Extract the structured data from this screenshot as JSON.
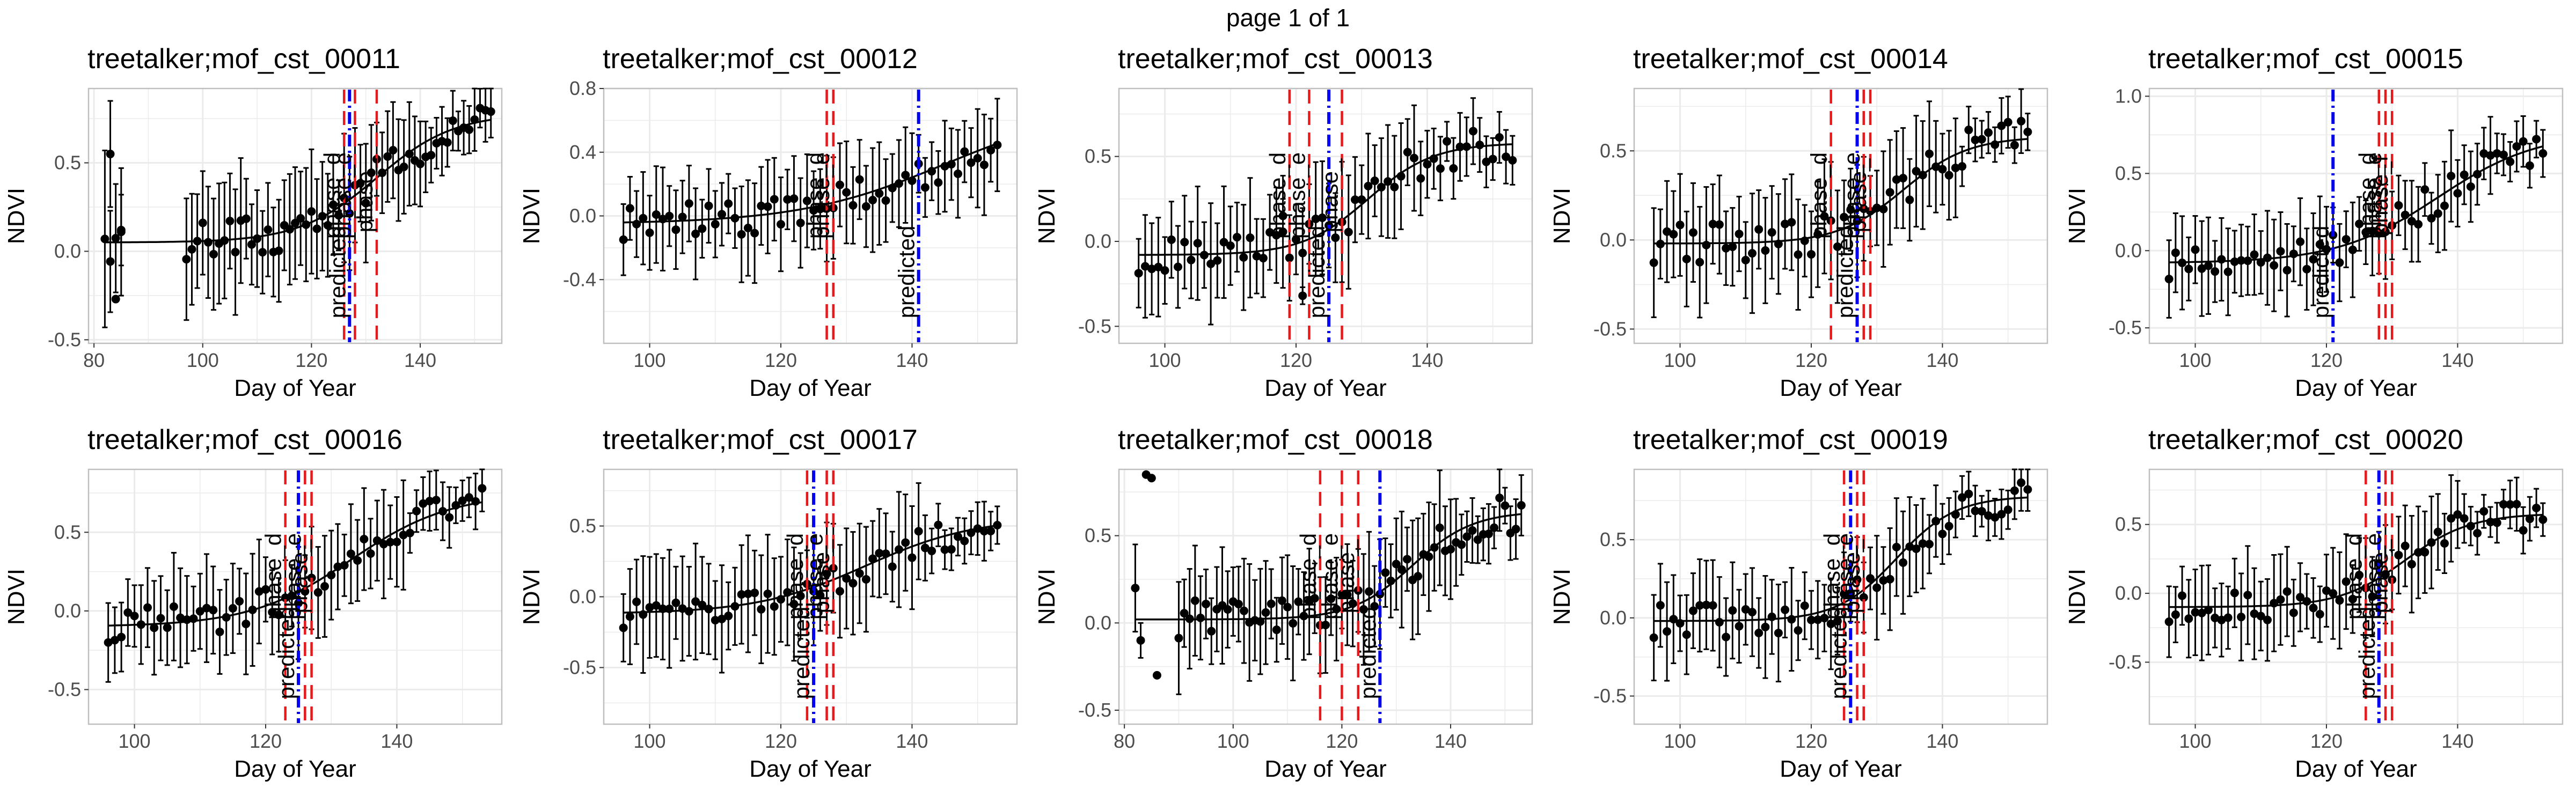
{
  "page_title": "page 1 of 1",
  "style": {
    "point_color": "#000000",
    "curve_color": "#000000",
    "phase_line_color": "#e41a1c",
    "predicted_line_color": "#0000ee",
    "panel_border": "#bfbfbf",
    "grid_color": "#ebebeb",
    "tick_text_color": "#4d4d4d"
  },
  "chart_data": [
    {
      "type": "scatter",
      "title": "treetalker;mof_cst_00011",
      "xlabel": "Day of Year",
      "ylabel": "NDVI",
      "xlim": [
        79,
        155
      ],
      "ylim": [
        -0.52,
        0.92
      ],
      "xticks": [
        80,
        100,
        120,
        140
      ],
      "yticks": [
        -0.5,
        0.0,
        0.5
      ],
      "ytick_labels": [
        "-0.5",
        "0.0",
        "0.5"
      ],
      "series_start": 83,
      "series_end": 153,
      "fit": {
        "base": 0.05,
        "amp": 0.73,
        "mid": 132,
        "k": 0.14
      },
      "err_half": 0.35,
      "outliers": [
        [
          82,
          0.07,
          0.5
        ],
        [
          83,
          0.55,
          0.3
        ],
        [
          84,
          -0.27,
          0.0
        ],
        [
          85,
          0.12,
          0.2
        ]
      ],
      "gap": [
        86,
        96
      ],
      "vlines": [
        {
          "x": 126,
          "label": "phase_d",
          "kind": "phase"
        },
        {
          "x": 127,
          "label": "predicted",
          "kind": "predicted"
        },
        {
          "x": 128,
          "label": "phase_e",
          "kind": "phase"
        },
        {
          "x": 132,
          "label": "phase_",
          "kind": "phase"
        }
      ],
      "grid": true
    },
    {
      "type": "scatter",
      "title": "treetalker;mof_cst_00012",
      "xlabel": "Day of Year",
      "ylabel": "NDVI",
      "xlim": [
        93,
        156
      ],
      "ylim": [
        -0.8,
        0.8
      ],
      "xticks": [
        100,
        120,
        140
      ],
      "yticks": [
        -0.4,
        0.0,
        0.4,
        0.8
      ],
      "ytick_labels": [
        "-0.4",
        "0.0",
        "0.4",
        "0.8"
      ],
      "series_start": 96,
      "series_end": 153,
      "fit": {
        "base": -0.05,
        "amp": 0.75,
        "mid": 145,
        "k": 0.09
      },
      "err_half": 0.32,
      "outliers": [],
      "gap": null,
      "vlines": [
        {
          "x": 127,
          "label": "phase_d",
          "kind": "phase"
        },
        {
          "x": 128,
          "label": "phase_e",
          "kind": "phase"
        },
        {
          "x": 141,
          "label": "predicted",
          "kind": "predicted"
        }
      ],
      "grid": true
    },
    {
      "type": "scatter",
      "title": "treetalker;mof_cst_00013",
      "xlabel": "Day of Year",
      "ylabel": "NDVI",
      "xlim": [
        93,
        156
      ],
      "ylim": [
        -0.6,
        0.9
      ],
      "xticks": [
        100,
        120,
        140
      ],
      "yticks": [
        -0.5,
        0.0,
        0.5
      ],
      "ytick_labels": [
        "-0.5",
        "0.0",
        "0.5"
      ],
      "series_start": 96,
      "series_end": 153,
      "fit": {
        "base": -0.08,
        "amp": 0.66,
        "mid": 131,
        "k": 0.2
      },
      "err_half": 0.35,
      "outliers": [
        [
          118,
          0.15,
          0.1
        ],
        [
          121,
          -0.32,
          0.05
        ]
      ],
      "gap": null,
      "vlines": [
        {
          "x": 119,
          "label": "phase_d",
          "kind": "phase"
        },
        {
          "x": 122,
          "label": "phase_e",
          "kind": "phase"
        },
        {
          "x": 125,
          "label": "predicted",
          "kind": "predicted"
        },
        {
          "x": 127,
          "label": "phase_",
          "kind": "phase"
        }
      ],
      "grid": true
    },
    {
      "type": "scatter",
      "title": "treetalker;mof_cst_00014",
      "xlabel": "Day of Year",
      "ylabel": "NDVI",
      "xlim": [
        93,
        156
      ],
      "ylim": [
        -0.58,
        0.85
      ],
      "xticks": [
        100,
        120,
        140
      ],
      "yticks": [
        -0.5,
        0.0,
        0.5
      ],
      "ytick_labels": [
        "-0.5",
        "0.0",
        "0.5"
      ],
      "series_start": 96,
      "series_end": 153,
      "fit": {
        "base": -0.02,
        "amp": 0.6,
        "mid": 134,
        "k": 0.2
      },
      "err_half": 0.32,
      "outliers": [],
      "gap": null,
      "vlines": [
        {
          "x": 123,
          "label": "phase_d",
          "kind": "phase"
        },
        {
          "x": 127,
          "label": "predicted",
          "kind": "predicted"
        },
        {
          "x": 128,
          "label": "phase_e",
          "kind": "phase"
        },
        {
          "x": 129,
          "label": "phase_",
          "kind": "phase"
        }
      ],
      "grid": true
    },
    {
      "type": "scatter",
      "title": "treetalker;mof_cst_00015",
      "xlabel": "Day of Year",
      "ylabel": "NDVI",
      "xlim": [
        93,
        156
      ],
      "ylim": [
        -0.6,
        1.05
      ],
      "xticks": [
        100,
        120,
        140
      ],
      "yticks": [
        -0.5,
        0.0,
        0.5,
        1.0
      ],
      "ytick_labels": [
        "-0.5",
        "0.0",
        "0.5",
        "1.0"
      ],
      "series_start": 96,
      "series_end": 153,
      "fit": {
        "base": -0.08,
        "amp": 0.85,
        "mid": 137,
        "k": 0.13
      },
      "err_half": 0.3,
      "outliers": [],
      "gap": null,
      "vlines": [
        {
          "x": 121,
          "label": "predicted",
          "kind": "predicted"
        },
        {
          "x": 128,
          "label": "phase_d",
          "kind": "phase"
        },
        {
          "x": 129,
          "label": "phase_e",
          "kind": "phase"
        },
        {
          "x": 130,
          "label": "phase_f",
          "kind": "phase"
        }
      ],
      "grid": true
    },
    {
      "type": "scatter",
      "title": "treetalker;mof_cst_00016",
      "xlabel": "Day of Year",
      "ylabel": "NDVI",
      "xlim": [
        93,
        156
      ],
      "ylim": [
        -0.72,
        0.9
      ],
      "xticks": [
        100,
        120,
        140
      ],
      "yticks": [
        -0.5,
        0.0,
        0.5
      ],
      "ytick_labels": [
        "-0.5",
        "0.0",
        "0.5"
      ],
      "series_start": 96,
      "series_end": 153,
      "fit": {
        "base": -0.1,
        "amp": 0.85,
        "mid": 133,
        "k": 0.13
      },
      "err_half": 0.35,
      "outliers": [],
      "gap": null,
      "vlines": [
        {
          "x": 123,
          "label": "phase_d",
          "kind": "phase"
        },
        {
          "x": 125,
          "label": "predicted",
          "kind": "predicted"
        },
        {
          "x": 126,
          "label": "phase_e",
          "kind": "phase"
        },
        {
          "x": 127,
          "label": "phase_",
          "kind": "phase"
        }
      ],
      "grid": true
    },
    {
      "type": "scatter",
      "title": "treetalker;mof_cst_00017",
      "xlabel": "Day of Year",
      "ylabel": "NDVI",
      "xlim": [
        93,
        156
      ],
      "ylim": [
        -0.9,
        0.9
      ],
      "xticks": [
        100,
        120,
        140
      ],
      "yticks": [
        -0.5,
        0.0,
        0.5
      ],
      "ytick_labels": [
        "-0.5",
        "0.0",
        "0.5"
      ],
      "series_start": 96,
      "series_end": 153,
      "fit": {
        "base": -0.12,
        "amp": 0.68,
        "mid": 133,
        "k": 0.12
      },
      "err_half": 0.4,
      "outliers": [],
      "gap": null,
      "vlines": [
        {
          "x": 124,
          "label": "phase_d",
          "kind": "phase"
        },
        {
          "x": 125,
          "label": "predicted",
          "kind": "predicted"
        },
        {
          "x": 127,
          "label": "phase_e",
          "kind": "phase"
        },
        {
          "x": 128,
          "label": "phase_",
          "kind": "phase"
        }
      ],
      "grid": true
    },
    {
      "type": "scatter",
      "title": "treetalker;mof_cst_00018",
      "xlabel": "Day of Year",
      "ylabel": "NDVI",
      "xlim": [
        79,
        155
      ],
      "ylim": [
        -0.58,
        0.88
      ],
      "xticks": [
        80,
        100,
        120,
        140
      ],
      "yticks": [
        -0.5,
        0.0,
        0.5
      ],
      "ytick_labels": [
        "-0.5",
        "0.0",
        "0.5"
      ],
      "series_start": 90,
      "series_end": 153,
      "fit": {
        "base": 0.02,
        "amp": 0.62,
        "mid": 133,
        "k": 0.18
      },
      "err_half": 0.33,
      "outliers": [
        [
          82,
          0.2,
          0.25
        ],
        [
          83,
          -0.1,
          0.1
        ],
        [
          84,
          0.85,
          0.0
        ],
        [
          85,
          0.83,
          0.0
        ],
        [
          86,
          -0.3,
          0.0
        ]
      ],
      "gap": [
        87,
        89
      ],
      "vlines": [
        {
          "x": 116,
          "label": "phase_d",
          "kind": "phase"
        },
        {
          "x": 120,
          "label": "phase_e",
          "kind": "phase"
        },
        {
          "x": 123,
          "label": "phase_",
          "kind": "phase"
        },
        {
          "x": 127,
          "label": "predicted",
          "kind": "predicted"
        }
      ],
      "grid": true
    },
    {
      "type": "scatter",
      "title": "treetalker;mof_cst_00019",
      "xlabel": "Day of Year",
      "ylabel": "NDVI",
      "xlim": [
        93,
        156
      ],
      "ylim": [
        -0.68,
        0.95
      ],
      "xticks": [
        100,
        120,
        140
      ],
      "yticks": [
        -0.5,
        0.0,
        0.5
      ],
      "ytick_labels": [
        "-0.5",
        "0.0",
        "0.5"
      ],
      "series_start": 96,
      "series_end": 153,
      "fit": {
        "base": -0.02,
        "amp": 0.8,
        "mid": 133,
        "k": 0.22
      },
      "err_half": 0.32,
      "outliers": [],
      "gap": null,
      "vlines": [
        {
          "x": 125,
          "label": "phase_d",
          "kind": "phase"
        },
        {
          "x": 126,
          "label": "predicted",
          "kind": "predicted"
        },
        {
          "x": 127,
          "label": "phase_e",
          "kind": "phase"
        },
        {
          "x": 128,
          "label": "phase_",
          "kind": "phase"
        }
      ],
      "grid": true
    },
    {
      "type": "scatter",
      "title": "treetalker;mof_cst_00020",
      "xlabel": "Day of Year",
      "ylabel": "NDVI",
      "xlim": [
        93,
        156
      ],
      "ylim": [
        -0.95,
        0.9
      ],
      "xticks": [
        100,
        120,
        140
      ],
      "yticks": [
        -0.5,
        0.0,
        0.5
      ],
      "ytick_labels": [
        "-0.5",
        "0.0",
        "0.5"
      ],
      "series_start": 96,
      "series_end": 153,
      "fit": {
        "base": -0.1,
        "amp": 0.68,
        "mid": 132,
        "k": 0.2
      },
      "err_half": 0.35,
      "outliers": [],
      "gap": null,
      "vlines": [
        {
          "x": 126,
          "label": "phase_d",
          "kind": "phase"
        },
        {
          "x": 128,
          "label": "predicted",
          "kind": "predicted"
        },
        {
          "x": 129,
          "label": "phase_e",
          "kind": "phase"
        },
        {
          "x": 130,
          "label": "phase_",
          "kind": "phase"
        }
      ],
      "grid": true
    }
  ]
}
